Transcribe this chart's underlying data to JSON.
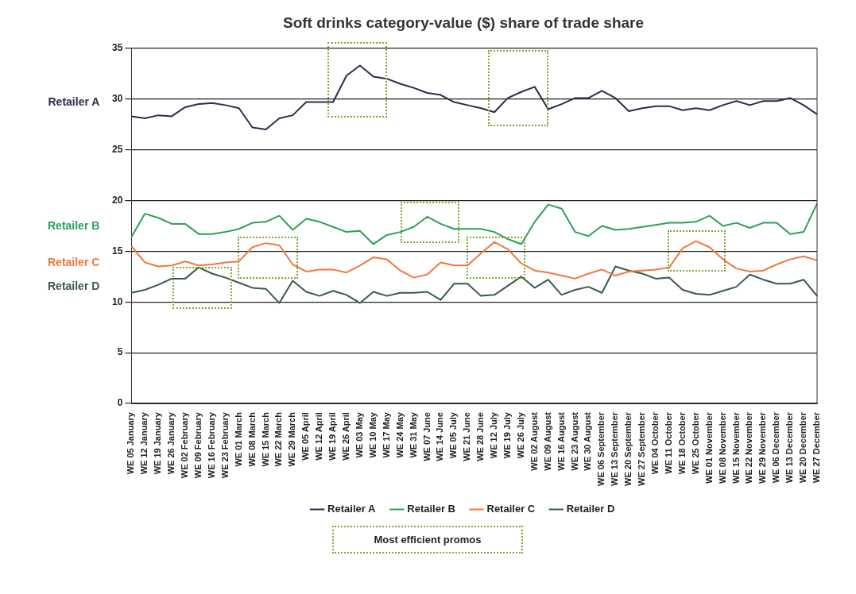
{
  "chart_data": {
    "type": "line",
    "title": "Soft drinks category-value ($) share of trade share",
    "categories": [
      "WE 05 January",
      "WE 12 January",
      "WE 19 January",
      "WE 26 January",
      "WE 02 February",
      "WE 09 February",
      "WE 16 February",
      "WE 23 February",
      "WE 01 March",
      "WE 08 March",
      "WE 15 March",
      "WE 22 March",
      "WE 29 March",
      "WE 05 April",
      "WE 12 April",
      "WE 19 April",
      "WE 26 April",
      "WE 03 May",
      "WE 10 May",
      "WE 17 May",
      "WE 24 May",
      "WE 31 May",
      "WE 07 June",
      "WE 14 June",
      "WE 05 July",
      "WE 21 June",
      "WE 28 June",
      "WE 12 July",
      "WE 19 July",
      "WE 26 July",
      "WE 02 August",
      "WE 09 August",
      "WE 16 August",
      "WE 23 August",
      "WE 30 August",
      "WE 06 September",
      "WE 13 September",
      "WE 20 September",
      "WE 27 September",
      "WE 04 October",
      "WE 11 October",
      "WE 18 October",
      "WE 25 October",
      "WE 01 November",
      "WE 08 November",
      "WE 15 November",
      "WE 22 November",
      "WE 29 November",
      "WE 06 December",
      "WE 13 December",
      "WE 20 December",
      "WE 27 December"
    ],
    "series": [
      {
        "name": "Retailer A",
        "color": "#2b2d4a",
        "values": [
          28.3,
          28.1,
          28.4,
          28.3,
          29.2,
          29.5,
          29.6,
          29.4,
          29.1,
          27.2,
          27.0,
          28.1,
          28.4,
          29.7,
          29.7,
          29.7,
          32.3,
          33.3,
          32.2,
          32.0,
          31.5,
          31.1,
          30.6,
          30.4,
          29.7,
          29.4,
          29.1,
          28.7,
          30.1,
          30.7,
          31.2,
          29.0,
          29.5,
          30.1,
          30.1,
          30.8,
          30.1,
          28.8,
          29.1,
          29.3,
          29.3,
          28.9,
          29.1,
          28.9,
          29.4,
          29.8,
          29.4,
          29.8,
          29.8,
          30.1,
          29.4,
          28.5
        ]
      },
      {
        "name": "Retailer B",
        "color": "#2ea05a",
        "values": [
          16.4,
          18.7,
          18.3,
          17.7,
          17.7,
          16.7,
          16.7,
          16.9,
          17.2,
          17.8,
          17.9,
          18.5,
          17.1,
          18.2,
          17.9,
          17.4,
          16.9,
          17.0,
          15.7,
          16.6,
          16.9,
          17.4,
          18.4,
          17.7,
          17.2,
          17.2,
          17.2,
          16.9,
          16.2,
          15.7,
          17.9,
          19.6,
          19.2,
          16.9,
          16.5,
          17.5,
          17.1,
          17.2,
          17.4,
          17.6,
          17.8,
          17.8,
          17.9,
          18.5,
          17.5,
          17.8,
          17.3,
          17.8,
          17.8,
          16.7,
          16.9,
          19.7
        ]
      },
      {
        "name": "Retailer C",
        "color": "#f07840",
        "values": [
          15.5,
          13.9,
          13.5,
          13.6,
          14.0,
          13.6,
          13.7,
          13.9,
          14.0,
          15.4,
          15.8,
          15.6,
          13.7,
          13.0,
          13.2,
          13.2,
          12.9,
          13.6,
          14.4,
          14.2,
          13.1,
          12.4,
          12.7,
          13.9,
          13.6,
          13.6,
          14.8,
          15.9,
          15.2,
          13.8,
          13.1,
          12.9,
          12.6,
          12.3,
          12.8,
          13.2,
          12.6,
          13.0,
          13.1,
          13.2,
          13.4,
          15.3,
          16.0,
          15.4,
          14.2,
          13.3,
          13.0,
          13.1,
          13.7,
          14.2,
          14.5,
          14.1
        ]
      },
      {
        "name": "Retailer D",
        "color": "#3a5a48",
        "values": [
          10.9,
          11.2,
          11.7,
          12.3,
          12.3,
          13.4,
          12.8,
          12.4,
          11.9,
          11.4,
          11.3,
          9.9,
          12.1,
          11.0,
          10.6,
          11.1,
          10.7,
          9.9,
          11.0,
          10.6,
          10.9,
          10.9,
          11.0,
          10.2,
          11.8,
          11.8,
          10.6,
          10.7,
          11.6,
          12.5,
          11.4,
          12.2,
          10.7,
          11.2,
          11.5,
          10.9,
          13.5,
          13.1,
          12.8,
          12.3,
          12.4,
          11.2,
          10.8,
          10.7,
          11.1,
          11.5,
          12.7,
          12.2,
          11.8,
          11.8,
          12.2,
          10.6
        ]
      }
    ],
    "ylim": [
      0,
      35
    ],
    "yticks": [
      0,
      5,
      10,
      15,
      20,
      25,
      30,
      35
    ],
    "grid": "y",
    "legend": "bottom",
    "annotations": [
      "Most efficient promos"
    ]
  }
}
